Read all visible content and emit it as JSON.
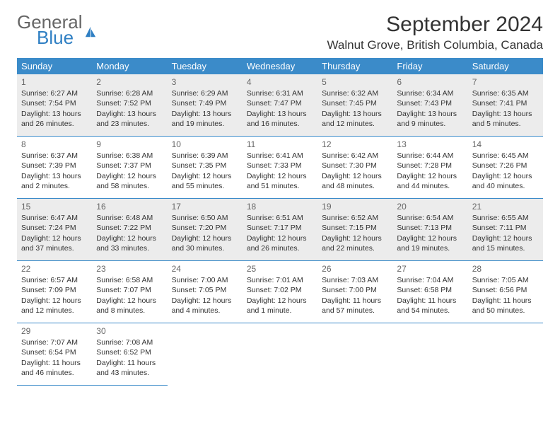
{
  "logo": {
    "line1": "General",
    "line2": "Blue"
  },
  "title": "September 2024",
  "location": "Walnut Grove, British Columbia, Canada",
  "header_bg": "#3b8bc9",
  "shade_bg": "#ececec",
  "weekdays": [
    "Sunday",
    "Monday",
    "Tuesday",
    "Wednesday",
    "Thursday",
    "Friday",
    "Saturday"
  ],
  "shaded_weeks": [
    0,
    2
  ],
  "days": [
    {
      "n": "1",
      "sr": "6:27 AM",
      "ss": "7:54 PM",
      "dl": "13 hours and 26 minutes."
    },
    {
      "n": "2",
      "sr": "6:28 AM",
      "ss": "7:52 PM",
      "dl": "13 hours and 23 minutes."
    },
    {
      "n": "3",
      "sr": "6:29 AM",
      "ss": "7:49 PM",
      "dl": "13 hours and 19 minutes."
    },
    {
      "n": "4",
      "sr": "6:31 AM",
      "ss": "7:47 PM",
      "dl": "13 hours and 16 minutes."
    },
    {
      "n": "5",
      "sr": "6:32 AM",
      "ss": "7:45 PM",
      "dl": "13 hours and 12 minutes."
    },
    {
      "n": "6",
      "sr": "6:34 AM",
      "ss": "7:43 PM",
      "dl": "13 hours and 9 minutes."
    },
    {
      "n": "7",
      "sr": "6:35 AM",
      "ss": "7:41 PM",
      "dl": "13 hours and 5 minutes."
    },
    {
      "n": "8",
      "sr": "6:37 AM",
      "ss": "7:39 PM",
      "dl": "13 hours and 2 minutes."
    },
    {
      "n": "9",
      "sr": "6:38 AM",
      "ss": "7:37 PM",
      "dl": "12 hours and 58 minutes."
    },
    {
      "n": "10",
      "sr": "6:39 AM",
      "ss": "7:35 PM",
      "dl": "12 hours and 55 minutes."
    },
    {
      "n": "11",
      "sr": "6:41 AM",
      "ss": "7:33 PM",
      "dl": "12 hours and 51 minutes."
    },
    {
      "n": "12",
      "sr": "6:42 AM",
      "ss": "7:30 PM",
      "dl": "12 hours and 48 minutes."
    },
    {
      "n": "13",
      "sr": "6:44 AM",
      "ss": "7:28 PM",
      "dl": "12 hours and 44 minutes."
    },
    {
      "n": "14",
      "sr": "6:45 AM",
      "ss": "7:26 PM",
      "dl": "12 hours and 40 minutes."
    },
    {
      "n": "15",
      "sr": "6:47 AM",
      "ss": "7:24 PM",
      "dl": "12 hours and 37 minutes."
    },
    {
      "n": "16",
      "sr": "6:48 AM",
      "ss": "7:22 PM",
      "dl": "12 hours and 33 minutes."
    },
    {
      "n": "17",
      "sr": "6:50 AM",
      "ss": "7:20 PM",
      "dl": "12 hours and 30 minutes."
    },
    {
      "n": "18",
      "sr": "6:51 AM",
      "ss": "7:17 PM",
      "dl": "12 hours and 26 minutes."
    },
    {
      "n": "19",
      "sr": "6:52 AM",
      "ss": "7:15 PM",
      "dl": "12 hours and 22 minutes."
    },
    {
      "n": "20",
      "sr": "6:54 AM",
      "ss": "7:13 PM",
      "dl": "12 hours and 19 minutes."
    },
    {
      "n": "21",
      "sr": "6:55 AM",
      "ss": "7:11 PM",
      "dl": "12 hours and 15 minutes."
    },
    {
      "n": "22",
      "sr": "6:57 AM",
      "ss": "7:09 PM",
      "dl": "12 hours and 12 minutes."
    },
    {
      "n": "23",
      "sr": "6:58 AM",
      "ss": "7:07 PM",
      "dl": "12 hours and 8 minutes."
    },
    {
      "n": "24",
      "sr": "7:00 AM",
      "ss": "7:05 PM",
      "dl": "12 hours and 4 minutes."
    },
    {
      "n": "25",
      "sr": "7:01 AM",
      "ss": "7:02 PM",
      "dl": "12 hours and 1 minute."
    },
    {
      "n": "26",
      "sr": "7:03 AM",
      "ss": "7:00 PM",
      "dl": "11 hours and 57 minutes."
    },
    {
      "n": "27",
      "sr": "7:04 AM",
      "ss": "6:58 PM",
      "dl": "11 hours and 54 minutes."
    },
    {
      "n": "28",
      "sr": "7:05 AM",
      "ss": "6:56 PM",
      "dl": "11 hours and 50 minutes."
    },
    {
      "n": "29",
      "sr": "7:07 AM",
      "ss": "6:54 PM",
      "dl": "11 hours and 46 minutes."
    },
    {
      "n": "30",
      "sr": "7:08 AM",
      "ss": "6:52 PM",
      "dl": "11 hours and 43 minutes."
    }
  ],
  "labels": {
    "sunrise": "Sunrise:",
    "sunset": "Sunset:",
    "daylight": "Daylight:"
  }
}
